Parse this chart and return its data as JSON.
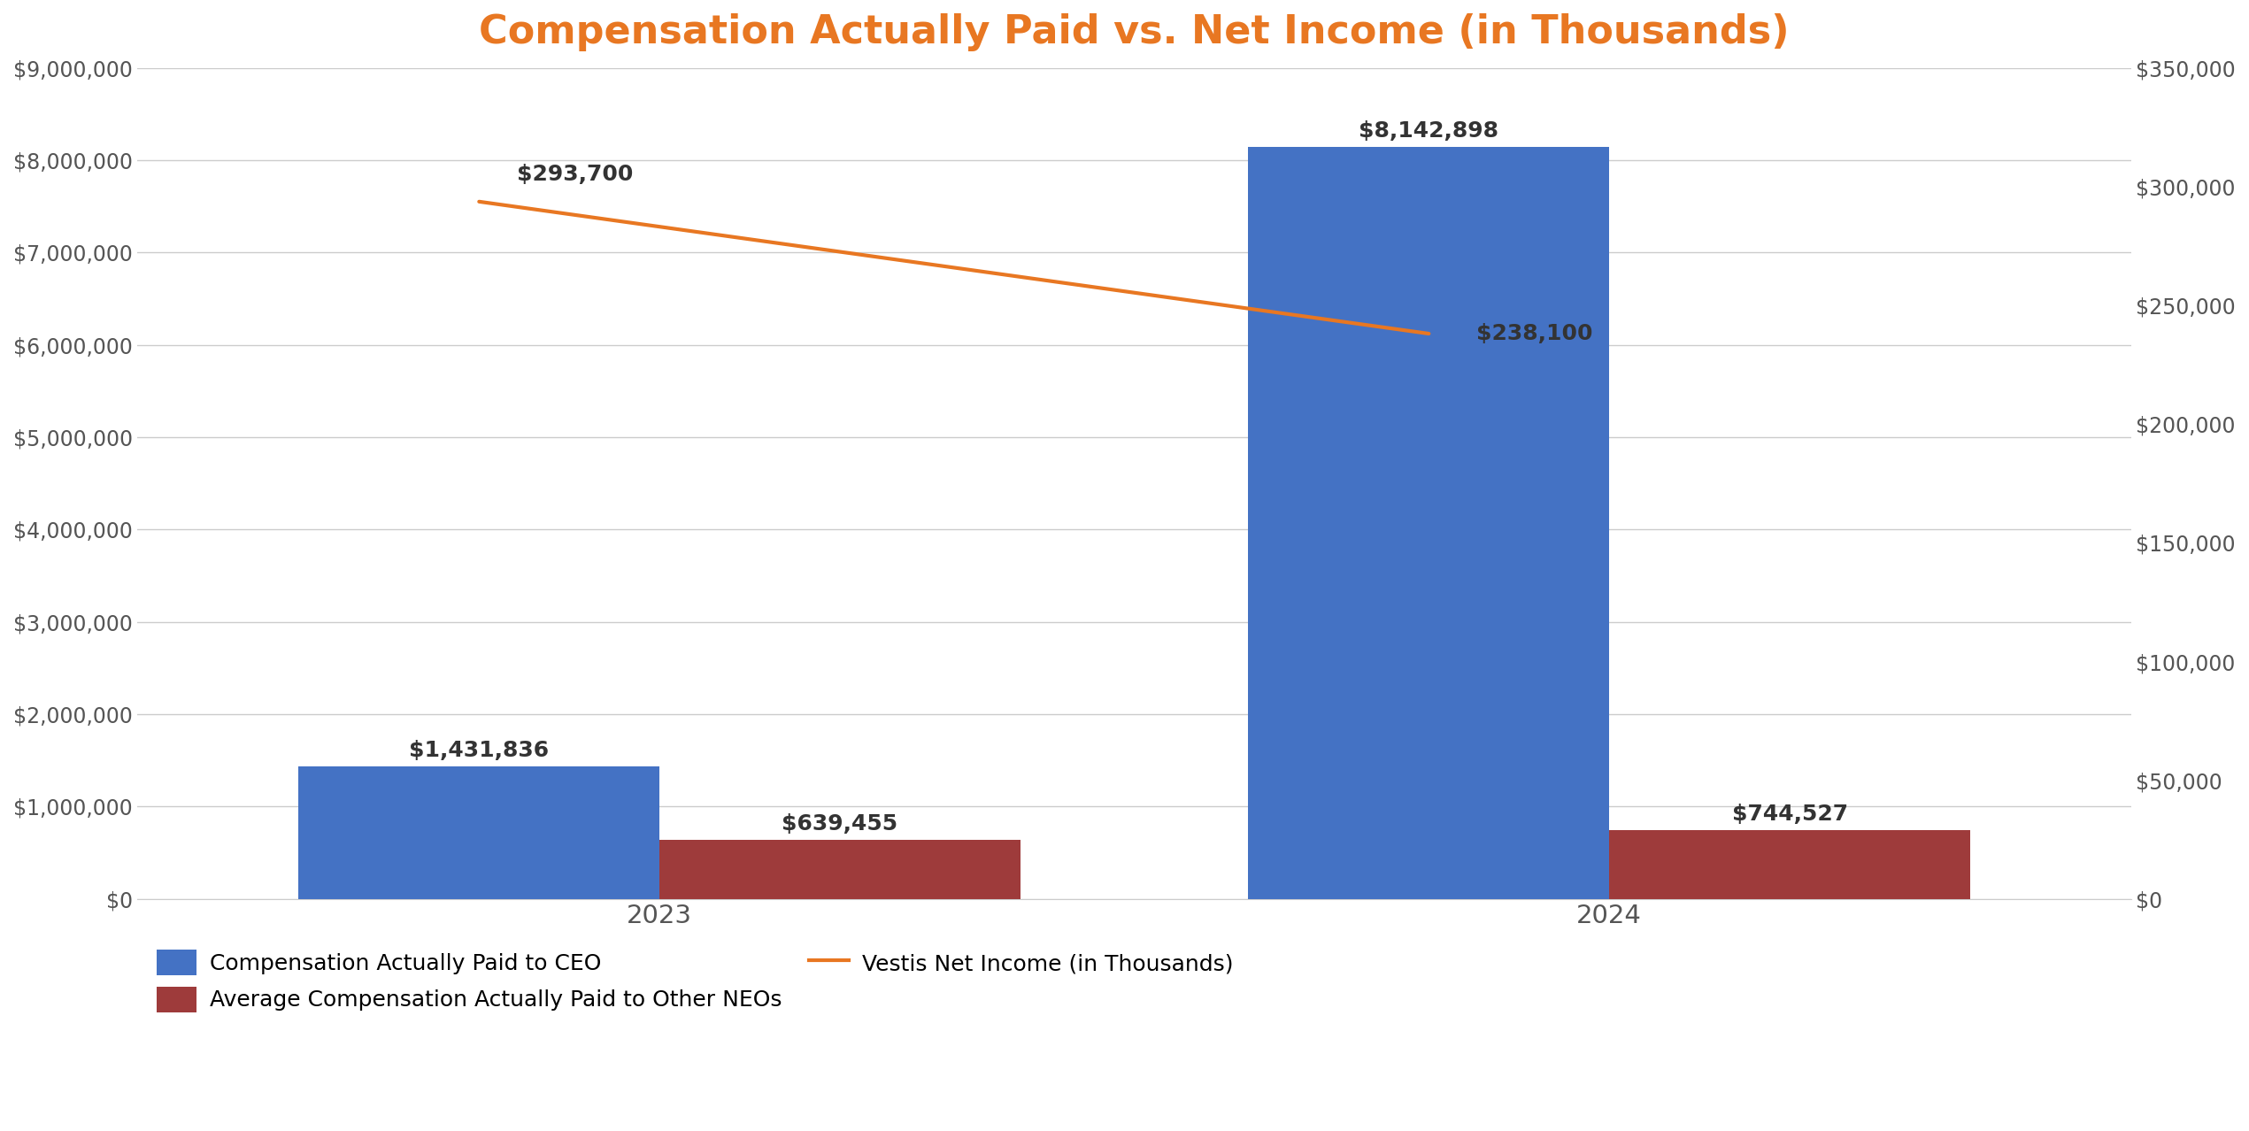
{
  "title": "Compensation Actually Paid vs. Net Income (in Thousands)",
  "title_color": "#E87722",
  "title_fontsize": 32,
  "years": [
    "2023",
    "2024"
  ],
  "ceo_values": [
    1431836,
    8142898
  ],
  "neo_values": [
    639455,
    744527
  ],
  "net_income": [
    293700,
    238100
  ],
  "ceo_labels": [
    "$1,431,836",
    "$8,142,898"
  ],
  "neo_labels": [
    "$639,455",
    "$744,527"
  ],
  "ni_labels": [
    "$293,700",
    "$238,100"
  ],
  "ceo_color": "#4472C4",
  "neo_color": "#9E3B3B",
  "line_color": "#E87722",
  "ylim_left": [
    0,
    9000000
  ],
  "ylim_right": [
    0,
    350000
  ],
  "yticks_left": [
    0,
    1000000,
    2000000,
    3000000,
    4000000,
    5000000,
    6000000,
    7000000,
    8000000,
    9000000
  ],
  "yticks_right": [
    0,
    50000,
    100000,
    150000,
    200000,
    250000,
    300000,
    350000
  ],
  "legend_ceo": "Compensation Actually Paid to CEO",
  "legend_neo": "Average Compensation Actually Paid to Other NEOs",
  "legend_line": "Vestis Net Income (in Thousands)",
  "bg_color": "#FFFFFF",
  "bar_width": 0.38,
  "group_centers": [
    0.0,
    1.0
  ],
  "label_fontsize": 18,
  "tick_fontsize": 17,
  "legend_fontsize": 18,
  "annotation_color": "#333333"
}
